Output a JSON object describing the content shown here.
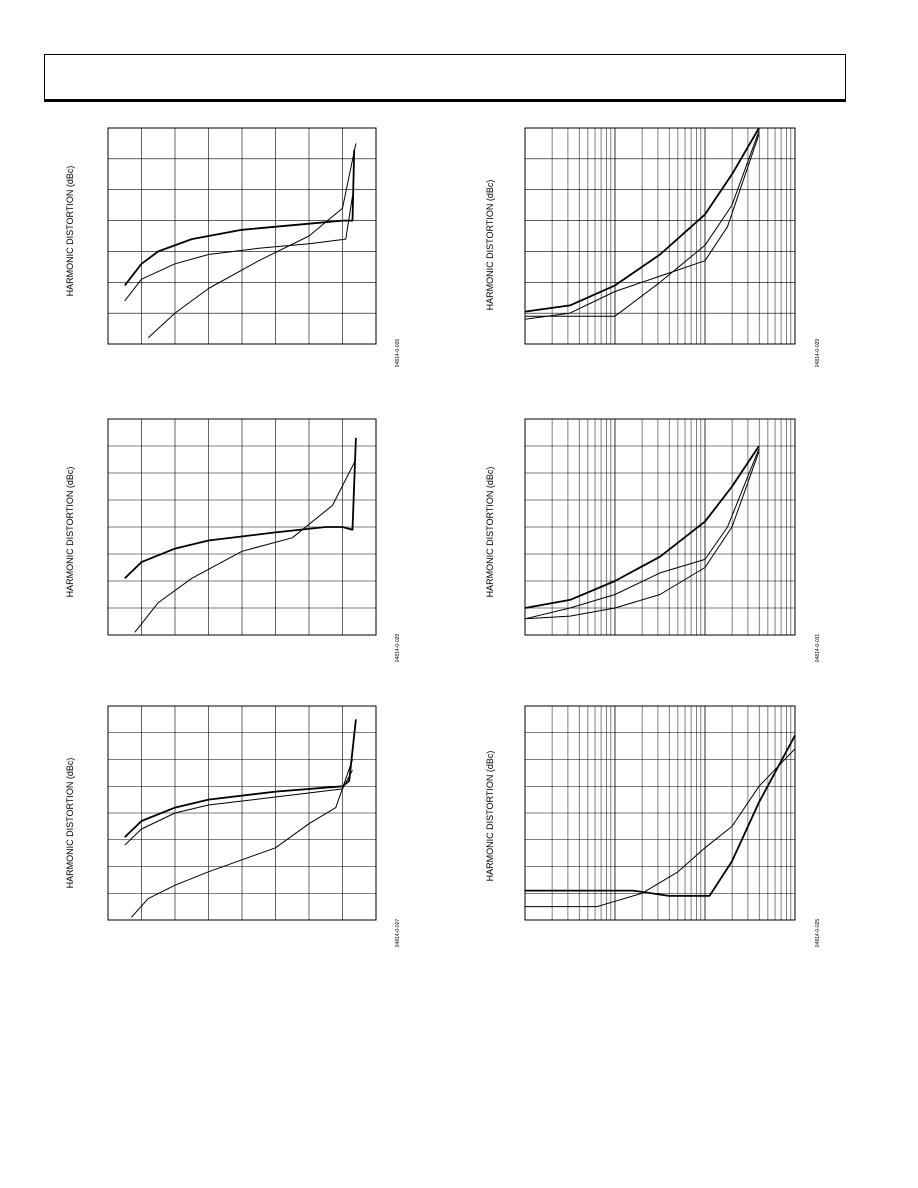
{
  "header": {
    "title": ""
  },
  "charts": [
    {
      "id": "c1",
      "ylabel": "HARMONIC DISTORTION (dBc)",
      "code": "04814-0-026"
    },
    {
      "id": "c2",
      "ylabel": "HARMONIC DISTORTION (dBc)",
      "code": "04814-0-029"
    },
    {
      "id": "c3",
      "ylabel": "HARMONIC DISTORTION (dBc)",
      "code": "04814-0-028"
    },
    {
      "id": "c4",
      "ylabel": "HARMONIC DISTORTION (dBc)",
      "code": "04814-0-031"
    },
    {
      "id": "c5",
      "ylabel": "HARMONIC DISTORTION (dBc)",
      "code": "04814-0-027"
    },
    {
      "id": "c6",
      "ylabel": "HARMONIC DISTORTION (dBc)",
      "code": "04814-0-025"
    }
  ],
  "chart_data": [
    {
      "type": "line",
      "scale": "linear",
      "xlim": [
        0,
        8
      ],
      "ylim": [
        0,
        7
      ],
      "series": [
        {
          "values": [
            [
              0.5,
              1.9
            ],
            [
              1,
              2.6
            ],
            [
              1.5,
              3.0
            ],
            [
              2.5,
              3.4
            ],
            [
              4,
              3.7
            ],
            [
              6,
              3.9
            ],
            [
              7,
              4.0
            ],
            [
              7.3,
              4.0
            ],
            [
              7.35,
              6.3
            ]
          ]
        },
        {
          "values": [
            [
              0.5,
              1.4
            ],
            [
              1,
              2.1
            ],
            [
              2,
              2.6
            ],
            [
              3,
              2.9
            ],
            [
              4.5,
              3.1
            ],
            [
              6,
              3.25
            ],
            [
              7.1,
              3.4
            ],
            [
              7.3,
              4.8
            ]
          ]
        },
        {
          "values": [
            [
              1.2,
              0.2
            ],
            [
              2,
              1.0
            ],
            [
              3,
              1.8
            ],
            [
              4.5,
              2.7
            ],
            [
              6,
              3.5
            ],
            [
              7,
              4.4
            ],
            [
              7.4,
              6.5
            ]
          ]
        }
      ]
    },
    {
      "type": "line",
      "scale": "log",
      "xlim": [
        0,
        3
      ],
      "ylim": [
        0,
        7
      ],
      "series": [
        {
          "values": [
            [
              0,
              1.05
            ],
            [
              0.5,
              1.25
            ],
            [
              1,
              1.9
            ],
            [
              1.5,
              2.9
            ],
            [
              2,
              4.2
            ],
            [
              2.3,
              5.5
            ],
            [
              2.6,
              7.0
            ]
          ]
        },
        {
          "values": [
            [
              0,
              0.8
            ],
            [
              0.5,
              1.0
            ],
            [
              1,
              1.7
            ],
            [
              1.5,
              2.2
            ],
            [
              2,
              2.7
            ],
            [
              2.25,
              3.8
            ],
            [
              2.6,
              6.8
            ]
          ]
        },
        {
          "values": [
            [
              0,
              0.9
            ],
            [
              0.5,
              0.9
            ],
            [
              1,
              0.9
            ],
            [
              1.5,
              2.0
            ],
            [
              2,
              3.2
            ],
            [
              2.3,
              4.5
            ],
            [
              2.6,
              6.9
            ]
          ]
        }
      ]
    },
    {
      "type": "line",
      "scale": "linear",
      "xlim": [
        0,
        8
      ],
      "ylim": [
        0,
        8
      ],
      "series": [
        {
          "values": [
            [
              0.5,
              2.1
            ],
            [
              1,
              2.7
            ],
            [
              2,
              3.2
            ],
            [
              3,
              3.5
            ],
            [
              5,
              3.8
            ],
            [
              6.5,
              4.0
            ],
            [
              7.0,
              4.0
            ],
            [
              7.3,
              3.9
            ],
            [
              7.4,
              7.3
            ]
          ]
        },
        {
          "values": [
            [
              0.8,
              0.1
            ],
            [
              1.5,
              1.2
            ],
            [
              2.5,
              2.1
            ],
            [
              4,
              3.1
            ],
            [
              5.5,
              3.6
            ],
            [
              6.7,
              4.8
            ],
            [
              7.4,
              6.5
            ]
          ]
        }
      ]
    },
    {
      "type": "line",
      "scale": "log",
      "xlim": [
        0,
        3
      ],
      "ylim": [
        0,
        8
      ],
      "series": [
        {
          "values": [
            [
              0,
              1.0
            ],
            [
              0.5,
              1.3
            ],
            [
              1,
              2.0
            ],
            [
              1.5,
              2.9
            ],
            [
              2,
              4.2
            ],
            [
              2.3,
              5.5
            ],
            [
              2.6,
              7.0
            ]
          ]
        },
        {
          "values": [
            [
              0,
              0.6
            ],
            [
              0.5,
              1.0
            ],
            [
              1,
              1.5
            ],
            [
              1.5,
              2.3
            ],
            [
              2,
              2.8
            ],
            [
              2.25,
              4.0
            ],
            [
              2.6,
              6.9
            ]
          ]
        },
        {
          "values": [
            [
              0,
              0.6
            ],
            [
              0.5,
              0.7
            ],
            [
              1,
              1.0
            ],
            [
              1.5,
              1.5
            ],
            [
              2,
              2.5
            ],
            [
              2.3,
              4.0
            ],
            [
              2.6,
              6.8
            ]
          ]
        }
      ]
    },
    {
      "type": "line",
      "scale": "linear",
      "xlim": [
        0,
        8
      ],
      "ylim": [
        0,
        8
      ],
      "series": [
        {
          "values": [
            [
              0.5,
              3.1
            ],
            [
              1,
              3.7
            ],
            [
              2,
              4.2
            ],
            [
              3,
              4.5
            ],
            [
              5,
              4.8
            ],
            [
              7,
              5.0
            ],
            [
              7.2,
              5.2
            ],
            [
              7.4,
              7.5
            ]
          ]
        },
        {
          "values": [
            [
              0.5,
              2.8
            ],
            [
              1,
              3.4
            ],
            [
              2,
              4.0
            ],
            [
              3,
              4.3
            ],
            [
              5,
              4.6
            ],
            [
              7,
              4.9
            ],
            [
              7.3,
              5.6
            ]
          ]
        },
        {
          "values": [
            [
              0.7,
              0.1
            ],
            [
              1.2,
              0.8
            ],
            [
              2,
              1.3
            ],
            [
              3,
              1.8
            ],
            [
              5,
              2.7
            ],
            [
              6,
              3.6
            ],
            [
              6.8,
              4.2
            ],
            [
              7.3,
              6.0
            ]
          ]
        }
      ]
    },
    {
      "type": "line",
      "scale": "log",
      "xlim": [
        0,
        3
      ],
      "ylim": [
        0,
        8
      ],
      "series": [
        {
          "values": [
            [
              0,
              1.1
            ],
            [
              0.5,
              1.1
            ],
            [
              0.8,
              1.1
            ],
            [
              1.2,
              1.1
            ],
            [
              1.6,
              0.9
            ],
            [
              2.05,
              0.9
            ],
            [
              2.3,
              2.2
            ],
            [
              2.6,
              4.4
            ],
            [
              3,
              6.9
            ]
          ]
        },
        {
          "values": [
            [
              0,
              0.5
            ],
            [
              0.5,
              0.5
            ],
            [
              0.8,
              0.5
            ],
            [
              1,
              0.7
            ],
            [
              1.3,
              1.0
            ],
            [
              1.7,
              1.8
            ],
            [
              2,
              2.7
            ],
            [
              2.3,
              3.5
            ],
            [
              2.6,
              5.0
            ],
            [
              3,
              6.4
            ]
          ]
        }
      ]
    }
  ]
}
